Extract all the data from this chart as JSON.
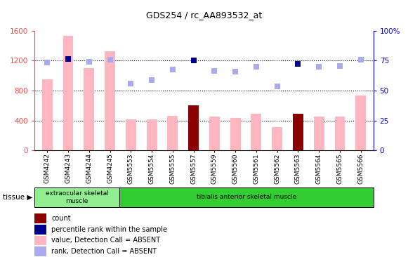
{
  "title": "GDS254 / rc_AA893532_at",
  "categories": [
    "GSM4242",
    "GSM4243",
    "GSM4244",
    "GSM4245",
    "GSM5553",
    "GSM5554",
    "GSM5555",
    "GSM5557",
    "GSM5559",
    "GSM5560",
    "GSM5561",
    "GSM5562",
    "GSM5563",
    "GSM5564",
    "GSM5565",
    "GSM5566"
  ],
  "bar_values": [
    950,
    1530,
    1100,
    1330,
    410,
    410,
    460,
    600,
    450,
    430,
    490,
    310,
    490,
    450,
    450,
    730
  ],
  "bar_colors": [
    "#FFB6C1",
    "#FFB6C1",
    "#FFB6C1",
    "#FFB6C1",
    "#FFB6C1",
    "#FFB6C1",
    "#FFB6C1",
    "#8B0000",
    "#FFB6C1",
    "#FFB6C1",
    "#FFB6C1",
    "#FFB6C1",
    "#8B0000",
    "#FFB6C1",
    "#FFB6C1",
    "#FFB6C1"
  ],
  "rank_values": [
    73.4,
    76.3,
    74.1,
    75.9,
    55.6,
    59.1,
    67.8,
    75.0,
    66.3,
    65.6,
    70.0,
    53.4,
    72.5,
    70.0,
    70.6,
    75.9
  ],
  "rank_colors": [
    "#AAAAEE",
    "#00008B",
    "#AAAAEE",
    "#AAAAEE",
    "#AAAAEE",
    "#AAAAEE",
    "#AAAAEE",
    "#00008B",
    "#AAAAEE",
    "#AAAAEE",
    "#AAAAEE",
    "#AAAAEE",
    "#00008B",
    "#AAAAEE",
    "#AAAAEE",
    "#AAAAEE"
  ],
  "ylim_left": [
    0,
    1600
  ],
  "ylim_right": [
    0,
    100
  ],
  "yticks_left": [
    0,
    400,
    800,
    1200,
    1600
  ],
  "yticks_right": [
    0,
    25,
    50,
    75,
    100
  ],
  "ytick_labels_left": [
    "0",
    "400",
    "800",
    "1200",
    "1600"
  ],
  "ytick_labels_right": [
    "0",
    "25",
    "50",
    "75",
    "100%"
  ],
  "left_axis_color": "#FF4444",
  "right_axis_color": "#0000BB",
  "tissue_groups": [
    {
      "label": "extraocular skeletal\nmuscle",
      "start": 0,
      "end": 4,
      "color": "#90EE90"
    },
    {
      "label": "tibialis anterior skeletal muscle",
      "start": 4,
      "end": 16,
      "color": "#33CC33"
    }
  ],
  "legend_items": [
    {
      "label": "count",
      "color": "#8B0000"
    },
    {
      "label": "percentile rank within the sample",
      "color": "#00008B"
    },
    {
      "label": "value, Detection Call = ABSENT",
      "color": "#FFB6C1"
    },
    {
      "label": "rank, Detection Call = ABSENT",
      "color": "#AAAAEE"
    }
  ],
  "bar_width": 0.5,
  "rank_marker_size": 40,
  "hgrid_values": [
    400,
    800,
    1200
  ]
}
